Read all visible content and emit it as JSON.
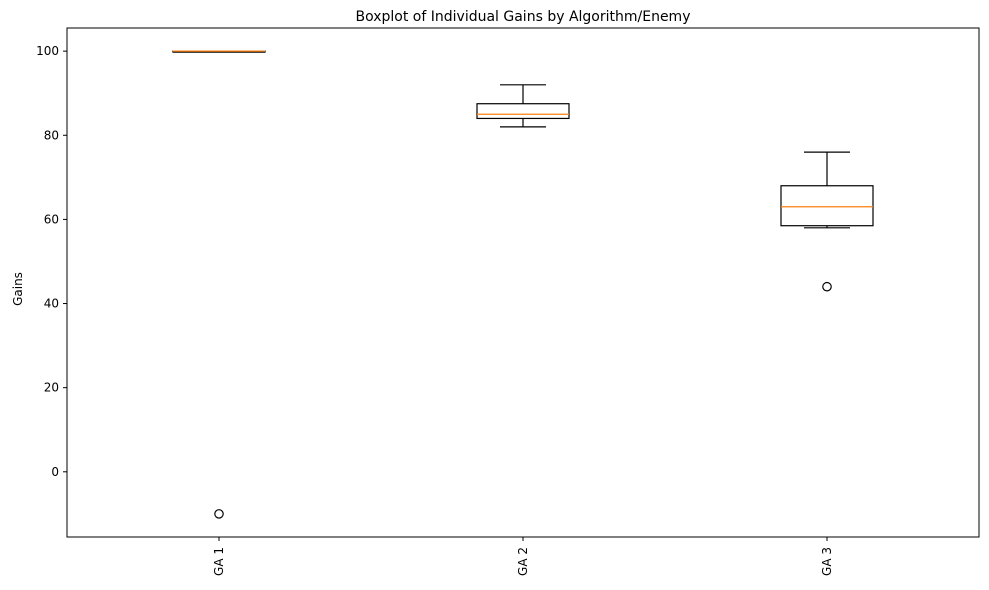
{
  "chart_data": {
    "type": "boxplot",
    "title": "Boxplot of Individual Gains by Algorithm/Enemy",
    "xlabel": "",
    "ylabel": "Gains",
    "categories": [
      "GA 1",
      "GA 2",
      "GA 3"
    ],
    "boxes": [
      {
        "label": "GA 1",
        "whisker_low": 100,
        "q1": 100,
        "median": 100,
        "q3": 100,
        "whisker_high": 100,
        "outliers": [
          -10
        ]
      },
      {
        "label": "GA 2",
        "whisker_low": 82,
        "q1": 84,
        "median": 85,
        "q3": 87.5,
        "whisker_high": 92,
        "outliers": []
      },
      {
        "label": "GA 3",
        "whisker_low": 58,
        "q1": 58.5,
        "median": 63,
        "q3": 68,
        "whisker_high": 76,
        "outliers": [
          44
        ]
      }
    ],
    "yticks": [
      0,
      20,
      40,
      60,
      80,
      100
    ],
    "ylim": [
      -15.5,
      105.5
    ],
    "grid": false,
    "colors": {
      "box": "#000000",
      "median": "#ff7f0e",
      "outlier": "#000000"
    }
  }
}
